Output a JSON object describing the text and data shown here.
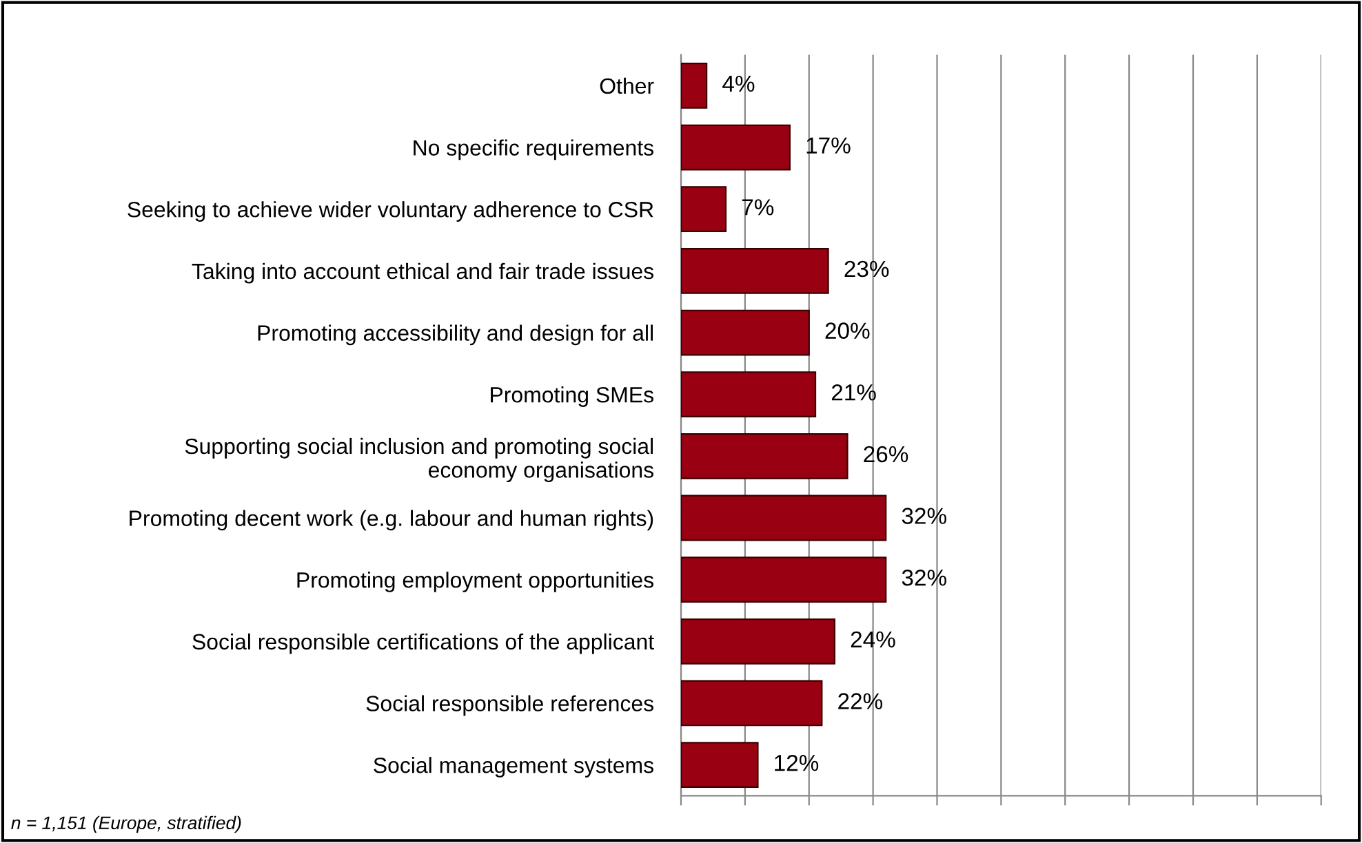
{
  "chart_data": {
    "type": "bar",
    "orientation": "horizontal",
    "categories": [
      "Other",
      "No specific requirements",
      "Seeking to achieve wider voluntary adherence to CSR",
      "Taking into account ethical and fair trade issues",
      "Promoting accessibility and design for all",
      "Promoting SMEs",
      "Supporting social inclusion and promoting social\neconomy organisations",
      "Promoting decent work (e.g. labour and human rights)",
      "Promoting employment opportunities",
      "Social responsible certifications of the applicant",
      "Social responsible references",
      "Social management systems"
    ],
    "values": [
      4,
      17,
      7,
      23,
      20,
      21,
      26,
      32,
      32,
      24,
      22,
      12
    ],
    "value_labels": [
      "4%",
      "17%",
      "7%",
      "23%",
      "20%",
      "21%",
      "26%",
      "32%",
      "32%",
      "24%",
      "22%",
      "12%"
    ],
    "color": "#990012",
    "xlim": [
      0,
      100
    ],
    "xticks": [
      {
        "value": 0,
        "label": null
      },
      {
        "value": 10,
        "label": null
      },
      {
        "value": 20,
        "label": null
      },
      {
        "value": 30,
        "label": null
      },
      {
        "value": 40,
        "label": null
      },
      {
        "value": 50,
        "label": null
      },
      {
        "value": 60,
        "label": null
      },
      {
        "value": 70,
        "label": null
      },
      {
        "value": 80,
        "label": null
      },
      {
        "value": 90,
        "label": null
      },
      {
        "value": 100,
        "label": null
      }
    ],
    "grid": "x",
    "tick_labels": "y",
    "annotations": [
      "n = 1,151 (Europe, stratified)"
    ]
  }
}
